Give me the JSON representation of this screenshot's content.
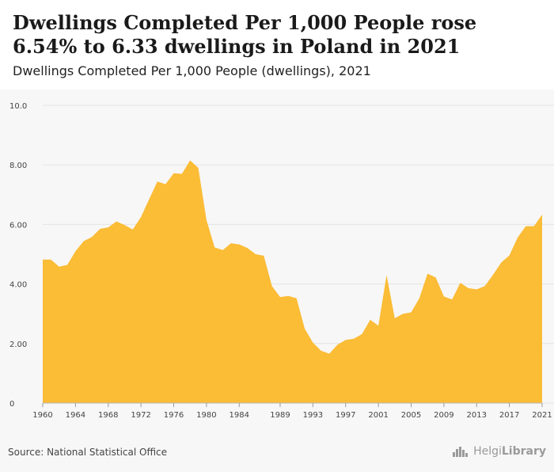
{
  "chart_data": {
    "type": "area",
    "title": "Dwellings Completed Per 1,000 People rose 6.54% to 6.33 dwellings in Poland in 2021",
    "subtitle": "Dwellings Completed Per 1,000 People (dwellings), 2021",
    "xlabel": "",
    "ylabel": "",
    "x": [
      1960,
      1961,
      1962,
      1963,
      1964,
      1965,
      1966,
      1967,
      1968,
      1969,
      1970,
      1971,
      1972,
      1973,
      1974,
      1975,
      1976,
      1977,
      1978,
      1979,
      1980,
      1981,
      1982,
      1983,
      1984,
      1985,
      1986,
      1987,
      1988,
      1989,
      1990,
      1991,
      1992,
      1993,
      1994,
      1995,
      1996,
      1997,
      1998,
      1999,
      2000,
      2001,
      2002,
      2003,
      2004,
      2005,
      2006,
      2007,
      2008,
      2009,
      2010,
      2011,
      2012,
      2013,
      2014,
      2015,
      2016,
      2017,
      2018,
      2019,
      2020,
      2021
    ],
    "values": [
      4.82,
      4.82,
      4.58,
      4.64,
      5.1,
      5.44,
      5.58,
      5.85,
      5.9,
      6.1,
      5.98,
      5.83,
      6.25,
      6.85,
      7.44,
      7.35,
      7.72,
      7.7,
      8.15,
      7.9,
      6.15,
      5.23,
      5.14,
      5.37,
      5.33,
      5.21,
      5.0,
      4.95,
      3.93,
      3.56,
      3.6,
      3.52,
      2.5,
      2.03,
      1.76,
      1.66,
      1.96,
      2.12,
      2.16,
      2.32,
      2.8,
      2.6,
      4.3,
      2.85,
      3.0,
      3.05,
      3.52,
      4.35,
      4.22,
      3.58,
      3.48,
      4.04,
      3.86,
      3.82,
      3.93,
      4.31,
      4.72,
      4.96,
      5.56,
      5.94,
      5.94,
      6.33
    ],
    "ylim": [
      0,
      10
    ],
    "y_ticks": [
      "0",
      "2.00",
      "4.00",
      "6.00",
      "8.00",
      "10.0"
    ],
    "x_tick_labels": [
      "1960",
      "1964",
      "1968",
      "1972",
      "1976",
      "1980",
      "1984",
      "1989",
      "1993",
      "1997",
      "2001",
      "2005",
      "2009",
      "2013",
      "2017",
      "2021"
    ],
    "grid": true,
    "colors": {
      "fill": "#fbbc36",
      "grid": "#e4e4e4",
      "background": "#f7f7f7"
    }
  },
  "footer": {
    "source": "Source: National Statistical Office",
    "brand_prefix": "Helgi",
    "brand_suffix": "Library"
  }
}
